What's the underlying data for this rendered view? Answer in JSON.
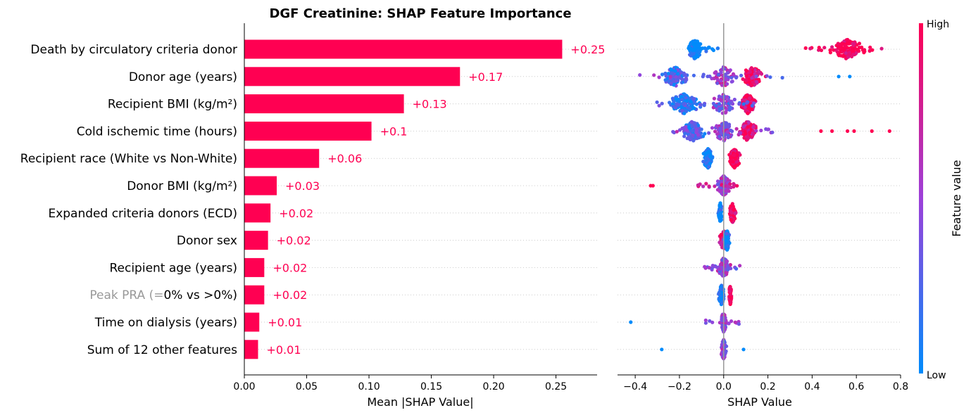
{
  "chart_data": [
    {
      "type": "bar",
      "orientation": "horizontal",
      "title": "DGF Creatinine: SHAP Feature Importance",
      "xlabel": "Mean |SHAP Value|",
      "ylabel": "",
      "xlim": [
        0,
        0.283
      ],
      "xticks": [
        "0.00",
        "0.05",
        "0.10",
        "0.15",
        "0.20",
        "0.25"
      ],
      "bar_color": "#FF0052",
      "grid": "dotted horizontal lines",
      "categories": [
        "Death by circulatory criteria donor",
        "Donor age (years)",
        "Recipient BMI (kg/m²)",
        "Cold ischemic time (hours)",
        "Recipient race (White vs Non-White)",
        "Donor BMI (kg/m²)",
        "Expanded criteria donors (ECD)",
        "Donor sex",
        "Recipient age (years)",
        "Peak PRA (=0% vs >0%)",
        "Time on dialysis (years)",
        "Sum of 12 other features"
      ],
      "faded_label_prefix": {
        "index": 9,
        "prefix": "Peak PRA (=",
        "rest": "0% vs >0%)"
      },
      "values": [
        0.255,
        0.173,
        0.128,
        0.102,
        0.06,
        0.026,
        0.021,
        0.019,
        0.016,
        0.016,
        0.012,
        0.011
      ],
      "data_labels": [
        "+0.25",
        "+0.17",
        "+0.13",
        "+0.1",
        "+0.06",
        "+0.03",
        "+0.02",
        "+0.02",
        "+0.02",
        "+0.02",
        "+0.01",
        "+0.01"
      ]
    },
    {
      "type": "scatter",
      "subtype": "beeswarm",
      "xlabel": "SHAP Value",
      "xlim": [
        -0.48,
        0.8
      ],
      "xticks": [
        "−0.4",
        "−0.2",
        "0.0",
        "0.2",
        "0.4",
        "0.6",
        "0.8"
      ],
      "zero_line": true,
      "colorbar": {
        "label": "Feature value",
        "high": "High",
        "low": "Low",
        "low_color": "#008BFB",
        "mid_color": "#9D40D9",
        "high_color": "#FF0052"
      },
      "rows": [
        {
          "feature": "Death by circulatory criteria donor",
          "groups": [
            {
              "center": -0.13,
              "spread": 0.05,
              "n": 130,
              "color": 0.0
            },
            {
              "range": [
                -0.12,
                -0.02
              ],
              "n": 12,
              "color": 0.0,
              "thin": true
            },
            {
              "center": 0.56,
              "spread": 0.13,
              "n": 110,
              "color": 1.0
            },
            {
              "range": [
                0.33,
                0.72
              ],
              "n": 20,
              "color": 1.0,
              "thin": true
            }
          ]
        },
        {
          "feature": "Donor age (years)",
          "groups": [
            {
              "center": -0.22,
              "spread": 0.09,
              "n": 110,
              "color": 0.2
            },
            {
              "center": 0.0,
              "spread": 0.1,
              "n": 60,
              "color": 0.55
            },
            {
              "center": 0.13,
              "spread": 0.08,
              "n": 130,
              "color": 0.9
            },
            {
              "range": [
                -0.38,
                0.28
              ],
              "n": 25,
              "color": 0.4,
              "thin": true
            },
            {
              "points": [
                0.52,
                0.57
              ],
              "color": 0.0
            }
          ]
        },
        {
          "feature": "Recipient BMI (kg/m²)",
          "groups": [
            {
              "center": -0.18,
              "spread": 0.12,
              "n": 120,
              "color": 0.1
            },
            {
              "center": 0.0,
              "spread": 0.09,
              "n": 70,
              "color": 0.45
            },
            {
              "center": 0.11,
              "spread": 0.05,
              "n": 120,
              "color": 0.9
            },
            {
              "range": [
                -0.31,
                0.15
              ],
              "n": 25,
              "color": 0.3,
              "thin": true
            }
          ]
        },
        {
          "feature": "Cold ischemic time (hours)",
          "groups": [
            {
              "center": -0.14,
              "spread": 0.1,
              "n": 120,
              "color": 0.25
            },
            {
              "center": 0.0,
              "spread": 0.08,
              "n": 90,
              "color": 0.5
            },
            {
              "center": 0.11,
              "spread": 0.07,
              "n": 120,
              "color": 0.85
            },
            {
              "range": [
                -0.24,
                0.25
              ],
              "n": 20,
              "color": 0.5,
              "thin": true
            },
            {
              "points": [
                0.44,
                0.49,
                0.56,
                0.59,
                0.67,
                0.75
              ],
              "color": 1.0
            }
          ]
        },
        {
          "feature": "Recipient race (White vs Non-White)",
          "groups": [
            {
              "center": -0.07,
              "spread": 0.04,
              "n": 110,
              "color": 0.0
            },
            {
              "center": 0.05,
              "spread": 0.04,
              "n": 110,
              "color": 1.0
            }
          ]
        },
        {
          "feature": "Donor BMI (kg/m²)",
          "groups": [
            {
              "center": 0.0,
              "spread": 0.05,
              "n": 130,
              "color": 0.5
            },
            {
              "range": [
                -0.15,
                0.06
              ],
              "n": 18,
              "color": 0.8,
              "thin": true
            },
            {
              "points": [
                -0.33,
                -0.32
              ],
              "color": 1.0
            }
          ]
        },
        {
          "feature": "Expanded criteria donors (ECD)",
          "groups": [
            {
              "center": -0.015,
              "spread": 0.015,
              "n": 90,
              "color": 0.0
            },
            {
              "center": 0.04,
              "spread": 0.025,
              "n": 70,
              "color": 1.0
            }
          ]
        },
        {
          "feature": "Donor sex",
          "groups": [
            {
              "center": 0.0,
              "spread": 0.03,
              "n": 90,
              "color": 0.9
            },
            {
              "center": 0.015,
              "spread": 0.02,
              "n": 90,
              "color": 0.0
            }
          ]
        },
        {
          "feature": "Recipient age (years)",
          "groups": [
            {
              "center": 0.0,
              "spread": 0.04,
              "n": 120,
              "color": 0.5
            },
            {
              "range": [
                -0.09,
                0.09
              ],
              "n": 20,
              "color": 0.4,
              "thin": true
            }
          ]
        },
        {
          "feature": "Peak PRA (=0% vs >0%)",
          "groups": [
            {
              "center": -0.01,
              "spread": 0.02,
              "n": 120,
              "color": 0.0
            },
            {
              "center": 0.03,
              "spread": 0.01,
              "n": 70,
              "color": 1.0
            }
          ]
        },
        {
          "feature": "Time on dialysis (years)",
          "groups": [
            {
              "center": 0.0,
              "spread": 0.02,
              "n": 110,
              "color": 0.5
            },
            {
              "range": [
                -0.1,
                0.07
              ],
              "n": 14,
              "color": 0.5,
              "thin": true
            },
            {
              "points": [
                -0.42
              ],
              "color": 0.0
            }
          ]
        },
        {
          "feature": "Sum of 12 other features",
          "groups": [
            {
              "center": 0.0,
              "spread": 0.02,
              "n": 110,
              "color": 0.5
            },
            {
              "points": [
                -0.28,
                0.09
              ],
              "color": 0.0
            }
          ]
        }
      ]
    }
  ]
}
